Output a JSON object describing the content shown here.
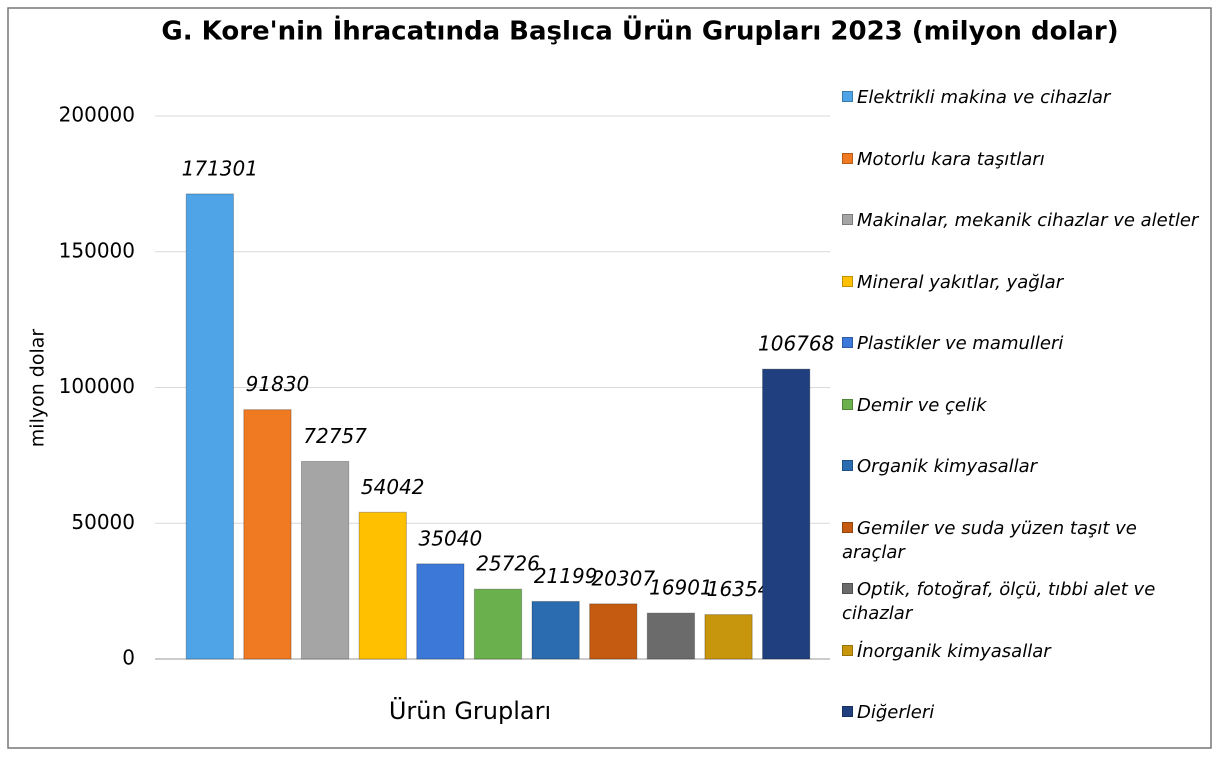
{
  "chart_data": {
    "type": "bar",
    "title": "G. Kore'nin İhracatında Başlıca Ürün Grupları 2023 (milyon dolar)",
    "y_label": "milyon dolar",
    "x_label": "Ürün Grupları",
    "categories": [
      null
    ],
    "series": [
      {
        "name": "Elektrikli makina ve cihazlar",
        "color": "#4ea4e6",
        "values": [
          171301
        ]
      },
      {
        "name": "Motorlu kara taşıtları",
        "color": "#f07a22",
        "values": [
          91830
        ]
      },
      {
        "name": "Makinalar, mekanik cihazlar ve aletler",
        "color": "#a5a5a5",
        "values": [
          72757
        ]
      },
      {
        "name": "Mineral yakıtlar, yağlar",
        "color": "#ffc000",
        "values": [
          54042
        ]
      },
      {
        "name": "Plastikler ve mamulleri",
        "color": "#3c78d8",
        "values": [
          35040
        ]
      },
      {
        "name": "Demir ve çelik",
        "color": "#6ab04c",
        "values": [
          25726
        ]
      },
      {
        "name": "Organik kimyasallar",
        "color": "#2b6cb0",
        "values": [
          21199
        ]
      },
      {
        "name": "Gemiler ve suda yüzen taşıt ve araçlar",
        "color": "#c55a11",
        "values": [
          20307
        ]
      },
      {
        "name": "Optik, fotoğraf, ölçü, tıbbi alet ve cihazlar",
        "color": "#6b6b6b",
        "values": [
          16901
        ]
      },
      {
        "name": "İnorganik kimyasallar",
        "color": "#c8960c",
        "values": [
          16354
        ]
      },
      {
        "name": "Diğerleri",
        "color": "#1f3f7f",
        "values": [
          106768
        ]
      }
    ],
    "ylim": [
      0,
      200000
    ],
    "yticks": [
      0,
      50000,
      100000,
      150000,
      200000
    ],
    "grid": true,
    "legend": "right"
  }
}
